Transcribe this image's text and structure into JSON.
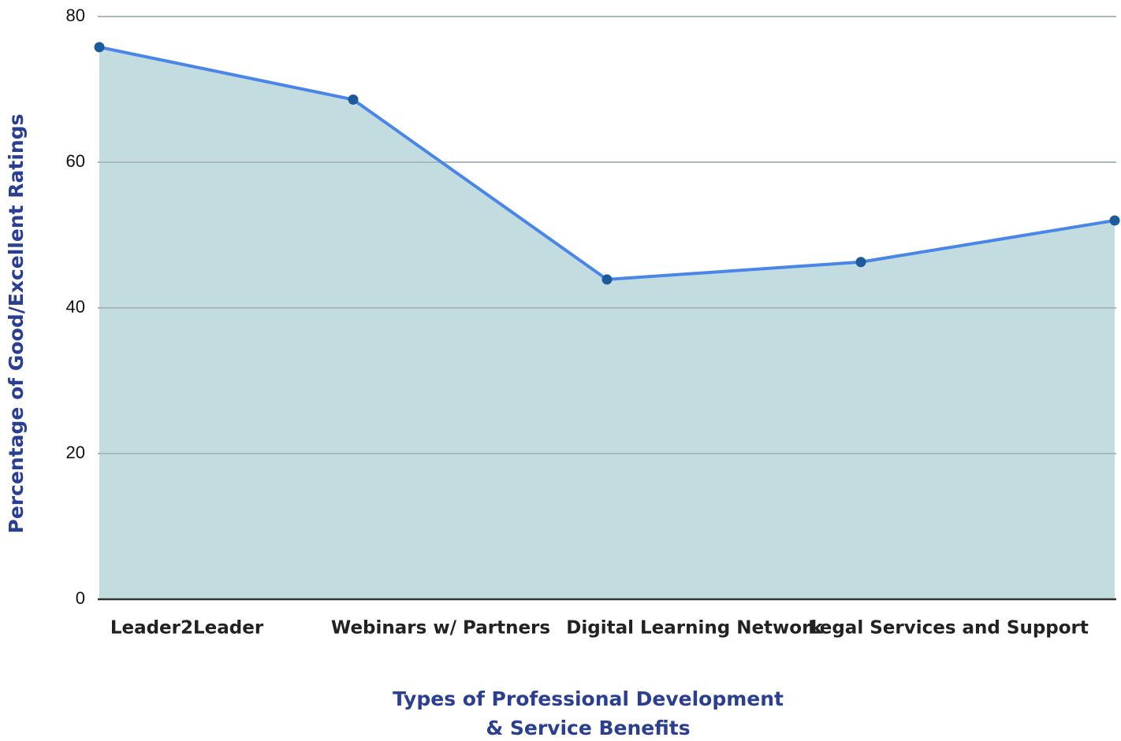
{
  "chart_data": {
    "type": "area",
    "ylabel": "Percentage of Good/Excellent Ratings",
    "xlabel": [
      "Types of Professional Development",
      "& Service Benefits"
    ],
    "categories": [
      "Leader2Leader",
      "Webinars w/ Partners",
      "Digital Learning Network",
      "Legal Services and Support",
      null
    ],
    "values": [
      75.8,
      68.6,
      43.9,
      46.3,
      52.0
    ],
    "line_color": "#4a86e8",
    "fill_color": "#c3dce0",
    "marker_color": "#1c5a9c",
    "ylim": [
      0,
      80
    ],
    "yticks": [
      0,
      20,
      40,
      60,
      80
    ],
    "grid": true
  }
}
